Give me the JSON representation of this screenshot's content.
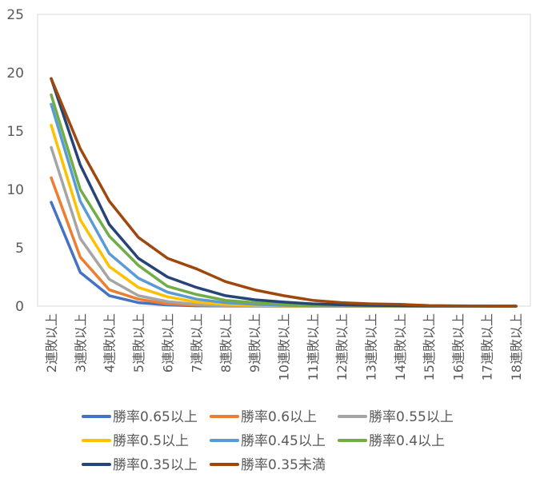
{
  "chart_data": {
    "type": "line",
    "title": "",
    "xlabel": "",
    "ylabel": "",
    "ylim": [
      0,
      25
    ],
    "yticks": [
      0,
      5,
      10,
      15,
      20,
      25
    ],
    "grid": false,
    "legend_position": "bottom",
    "categories": [
      "2連敗以上",
      "3連敗以上",
      "4連敗以上",
      "5連敗以上",
      "6連敗以上",
      "7連敗以上",
      "8連敗以上",
      "9連敗以上",
      "10連敗以上",
      "11連敗以上",
      "12連敗以上",
      "13連敗以上",
      "14連敗以上",
      "15連敗以上",
      "16連敗以上",
      "17連敗以上",
      "18連敗以上"
    ],
    "series": [
      {
        "name": "勝率0.65以上",
        "color": "#4472C4",
        "values": [
          8.9,
          2.9,
          0.9,
          0.3,
          0.1,
          0.03,
          0.01,
          0,
          0,
          0,
          0,
          0,
          0,
          0,
          0,
          0,
          0
        ]
      },
      {
        "name": "勝率0.6以上",
        "color": "#ED7D31",
        "values": [
          11.0,
          4.2,
          1.4,
          0.6,
          0.2,
          0.08,
          0.03,
          0.01,
          0,
          0,
          0,
          0,
          0,
          0,
          0,
          0,
          0
        ]
      },
      {
        "name": "勝率0.55以上",
        "color": "#A5A5A5",
        "values": [
          13.6,
          5.8,
          2.3,
          0.9,
          0.4,
          0.15,
          0.06,
          0.02,
          0.01,
          0,
          0,
          0,
          0,
          0,
          0,
          0,
          0
        ]
      },
      {
        "name": "勝率0.5以上",
        "color": "#FFC000",
        "values": [
          15.5,
          7.4,
          3.4,
          1.6,
          0.8,
          0.35,
          0.15,
          0.07,
          0.03,
          0.01,
          0,
          0,
          0,
          0,
          0,
          0,
          0
        ]
      },
      {
        "name": "勝率0.45以上",
        "color": "#5B9BD5",
        "values": [
          17.3,
          9.0,
          4.5,
          2.4,
          1.2,
          0.6,
          0.3,
          0.15,
          0.07,
          0.03,
          0.02,
          0.01,
          0,
          0,
          0,
          0,
          0
        ]
      },
      {
        "name": "勝率0.4以上",
        "color": "#70AD47",
        "values": [
          18.1,
          10.0,
          6.0,
          3.5,
          1.7,
          1.0,
          0.5,
          0.3,
          0.15,
          0.08,
          0.04,
          0.02,
          0.01,
          0,
          0,
          0,
          0
        ]
      },
      {
        "name": "勝率0.35以上",
        "color": "#264478",
        "values": [
          19.5,
          12.1,
          7.0,
          4.1,
          2.5,
          1.6,
          0.9,
          0.55,
          0.35,
          0.2,
          0.12,
          0.07,
          0.04,
          0.02,
          0.01,
          0,
          0
        ]
      },
      {
        "name": "勝率0.35未満",
        "color": "#9E480E",
        "values": [
          19.5,
          13.5,
          9.0,
          5.9,
          4.1,
          3.2,
          2.1,
          1.4,
          0.9,
          0.5,
          0.3,
          0.2,
          0.15,
          0.05,
          0.03,
          0.01,
          0
        ]
      }
    ]
  }
}
